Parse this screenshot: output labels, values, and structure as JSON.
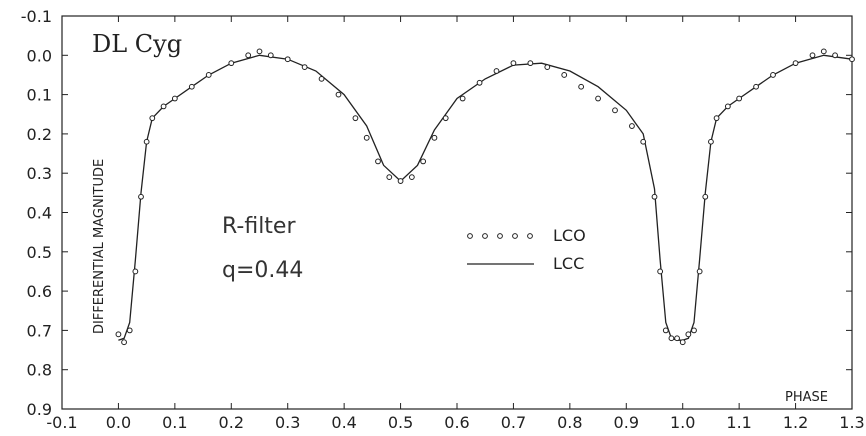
{
  "chart_data": {
    "type": "scatter",
    "title": "DL  Cyg",
    "xlabel": "PHASE",
    "ylabel": "DIFFERENTIAL  MAGNITUDE",
    "xlim": [
      -0.1,
      1.3
    ],
    "ylim": [
      -0.1,
      0.9
    ],
    "y_inverted": true,
    "x_ticks": [
      "-0.1",
      "0.0",
      "0.1",
      "0.2",
      "0.3",
      "0.4",
      "0.5",
      "0.6",
      "0.7",
      "0.8",
      "0.9",
      "1.0",
      "1.1",
      "1.2",
      "1.3"
    ],
    "y_ticks": [
      "-0.1",
      "0.0",
      "0.1",
      "0.2",
      "0.3",
      "0.4",
      "0.5",
      "0.6",
      "0.7",
      "0.8",
      "0.9"
    ],
    "annotations": {
      "filter": "R-filter",
      "mass_ratio": "q=0.44"
    },
    "legend": {
      "position": "center-right"
    },
    "series": [
      {
        "name": "LCO",
        "style": "open-circles",
        "x": [
          0.0,
          0.01,
          0.02,
          0.03,
          0.04,
          0.05,
          0.06,
          0.08,
          0.1,
          0.13,
          0.16,
          0.2,
          0.23,
          0.25,
          0.27,
          0.3,
          0.33,
          0.36,
          0.39,
          0.42,
          0.44,
          0.46,
          0.48,
          0.5,
          0.52,
          0.54,
          0.56,
          0.58,
          0.61,
          0.64,
          0.67,
          0.7,
          0.73,
          0.76,
          0.79,
          0.82,
          0.85,
          0.88,
          0.91,
          0.93,
          0.95,
          0.96,
          0.97,
          0.98,
          0.99,
          1.0,
          1.01,
          1.02,
          1.03,
          1.04,
          1.05,
          1.06,
          1.08,
          1.1,
          1.13,
          1.16,
          1.2,
          1.23,
          1.25,
          1.27,
          1.3
        ],
        "y": [
          0.71,
          0.73,
          0.7,
          0.55,
          0.36,
          0.22,
          0.16,
          0.13,
          0.11,
          0.08,
          0.05,
          0.02,
          0.0,
          -0.01,
          0.0,
          0.01,
          0.03,
          0.06,
          0.1,
          0.16,
          0.21,
          0.27,
          0.31,
          0.32,
          0.31,
          0.27,
          0.21,
          0.16,
          0.11,
          0.07,
          0.04,
          0.02,
          0.02,
          0.03,
          0.05,
          0.08,
          0.11,
          0.14,
          0.18,
          0.22,
          0.36,
          0.55,
          0.7,
          0.72,
          0.72,
          0.73,
          0.71,
          0.7,
          0.55,
          0.36,
          0.22,
          0.16,
          0.13,
          0.11,
          0.08,
          0.05,
          0.02,
          0.0,
          -0.01,
          0.0,
          0.01
        ]
      },
      {
        "name": "LCC",
        "style": "solid-line",
        "x": [
          0.0,
          0.01,
          0.02,
          0.03,
          0.04,
          0.05,
          0.06,
          0.08,
          0.1,
          0.13,
          0.16,
          0.2,
          0.25,
          0.3,
          0.35,
          0.4,
          0.44,
          0.47,
          0.5,
          0.53,
          0.56,
          0.6,
          0.65,
          0.7,
          0.75,
          0.8,
          0.85,
          0.9,
          0.93,
          0.95,
          0.96,
          0.97,
          0.98,
          0.99,
          1.0,
          1.01,
          1.02,
          1.03,
          1.04,
          1.05,
          1.06,
          1.08,
          1.1,
          1.13,
          1.16,
          1.2,
          1.25,
          1.3
        ],
        "y": [
          0.725,
          0.72,
          0.68,
          0.52,
          0.35,
          0.22,
          0.16,
          0.13,
          0.11,
          0.08,
          0.05,
          0.02,
          0.0,
          0.01,
          0.04,
          0.1,
          0.18,
          0.28,
          0.32,
          0.28,
          0.19,
          0.11,
          0.06,
          0.025,
          0.02,
          0.04,
          0.08,
          0.14,
          0.2,
          0.34,
          0.52,
          0.68,
          0.72,
          0.725,
          0.725,
          0.72,
          0.68,
          0.52,
          0.35,
          0.22,
          0.16,
          0.13,
          0.11,
          0.08,
          0.05,
          0.02,
          0.0,
          0.01
        ]
      }
    ]
  }
}
